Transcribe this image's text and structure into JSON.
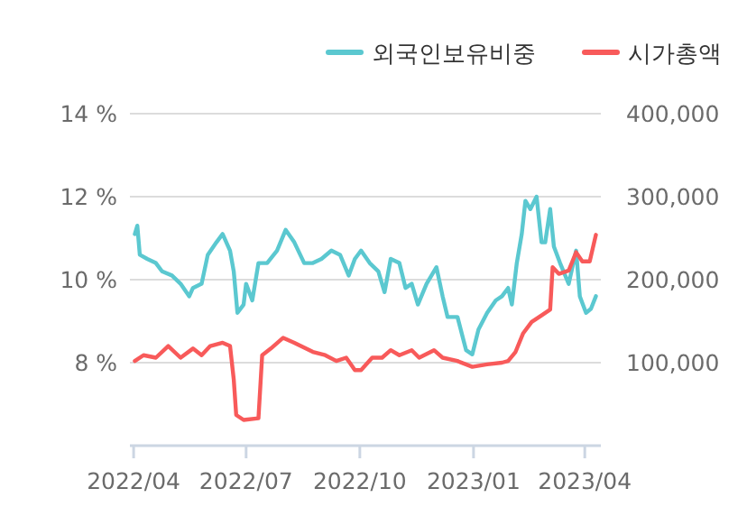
{
  "chart_data": {
    "type": "line",
    "legend": "top right",
    "grid": "y",
    "marker": "none",
    "line_style": "solid",
    "xlim": [
      "2022-03-29",
      "2023-04-14"
    ],
    "xticks": [
      {
        "value": "2022-04-01",
        "label": "2022/04"
      },
      {
        "value": "2022-07-01",
        "label": "2022/07"
      },
      {
        "value": "2022-10-01",
        "label": "2022/10"
      },
      {
        "value": "2023-01-01",
        "label": "2023/01"
      },
      {
        "value": "2023-04-01",
        "label": "2023/04"
      }
    ],
    "ylim": [
      6,
      14
    ],
    "yticks": [
      {
        "value": 8,
        "label": "8 %"
      },
      {
        "value": 10,
        "label": "10 %"
      },
      {
        "value": 12,
        "label": "12 %"
      },
      {
        "value": 14,
        "label": "14 %"
      }
    ],
    "y2lim": [
      0,
      400000
    ],
    "y2ticks": [
      {
        "value": 100000,
        "label": "100,000"
      },
      {
        "value": 200000,
        "label": "200,000"
      },
      {
        "value": 300000,
        "label": "300,000"
      },
      {
        "value": 400000,
        "label": "400,000"
      }
    ],
    "series": [
      {
        "name": "외국인보유비중",
        "color": "#5bc8d0",
        "axis": "y",
        "x": [
          "2022-04-02",
          "2022-04-04",
          "2022-04-06",
          "2022-04-12",
          "2022-04-19",
          "2022-04-24",
          "2022-05-02",
          "2022-05-09",
          "2022-05-16",
          "2022-05-19",
          "2022-05-26",
          "2022-05-31",
          "2022-06-07",
          "2022-06-12",
          "2022-06-18",
          "2022-06-21",
          "2022-06-24",
          "2022-06-29",
          "2022-07-01",
          "2022-07-06",
          "2022-07-11",
          "2022-07-18",
          "2022-07-26",
          "2022-08-02",
          "2022-08-09",
          "2022-08-17",
          "2022-08-24",
          "2022-08-31",
          "2022-09-08",
          "2022-09-15",
          "2022-09-22",
          "2022-09-27",
          "2022-10-02",
          "2022-10-09",
          "2022-10-16",
          "2022-10-21",
          "2022-10-26",
          "2022-11-02",
          "2022-11-07",
          "2022-11-12",
          "2022-11-17",
          "2022-11-24",
          "2022-12-02",
          "2022-12-07",
          "2022-12-11",
          "2022-12-19",
          "2022-12-26",
          "2022-12-31",
          "2023-01-05",
          "2023-01-12",
          "2023-01-19",
          "2023-01-24",
          "2023-01-29",
          "2023-02-01",
          "2023-02-05",
          "2023-02-09",
          "2023-02-12",
          "2023-02-16",
          "2023-02-21",
          "2023-02-25",
          "2023-02-28",
          "2023-03-04",
          "2023-03-07",
          "2023-03-12",
          "2023-03-19",
          "2023-03-25",
          "2023-03-28",
          "2023-04-02",
          "2023-04-06",
          "2023-04-10"
        ],
        "values": [
          11.1,
          11.3,
          10.6,
          10.5,
          10.4,
          10.2,
          10.1,
          9.9,
          9.6,
          9.8,
          9.9,
          10.6,
          10.9,
          11.1,
          10.7,
          10.2,
          9.2,
          9.4,
          9.9,
          9.5,
          10.4,
          10.4,
          10.7,
          11.2,
          10.9,
          10.4,
          10.4,
          10.5,
          10.7,
          10.6,
          10.1,
          10.5,
          10.7,
          10.4,
          10.2,
          9.7,
          10.5,
          10.4,
          9.8,
          9.9,
          9.4,
          9.9,
          10.3,
          9.6,
          9.1,
          9.1,
          8.3,
          8.2,
          8.8,
          9.2,
          9.5,
          9.6,
          9.8,
          9.4,
          10.4,
          11.1,
          11.9,
          11.7,
          12.0,
          10.9,
          10.9,
          11.7,
          10.8,
          10.4,
          9.9,
          10.7,
          9.6,
          9.2,
          9.3,
          9.6
        ]
      },
      {
        "name": "시가총액",
        "color": "#f85a5a",
        "axis": "y2",
        "x": [
          "2022-04-02",
          "2022-04-09",
          "2022-04-19",
          "2022-04-29",
          "2022-05-09",
          "2022-05-19",
          "2022-05-26",
          "2022-06-02",
          "2022-06-12",
          "2022-06-18",
          "2022-06-21",
          "2022-06-23",
          "2022-06-29",
          "2022-07-11",
          "2022-07-14",
          "2022-07-21",
          "2022-07-31",
          "2022-08-09",
          "2022-08-24",
          "2022-09-03",
          "2022-09-12",
          "2022-09-20",
          "2022-09-27",
          "2022-10-02",
          "2022-10-11",
          "2022-10-19",
          "2022-10-26",
          "2022-11-02",
          "2022-11-12",
          "2022-11-18",
          "2022-11-30",
          "2022-12-07",
          "2022-12-19",
          "2022-12-31",
          "2023-01-12",
          "2023-01-24",
          "2023-01-29",
          "2023-02-04",
          "2023-02-10",
          "2023-02-17",
          "2023-02-25",
          "2023-03-04",
          "2023-03-06",
          "2023-03-11",
          "2023-03-19",
          "2023-03-25",
          "2023-03-30",
          "2023-04-05",
          "2023-04-10"
        ],
        "values": [
          102000,
          109000,
          106000,
          120000,
          106000,
          117000,
          109000,
          120000,
          124000,
          120000,
          80000,
          37000,
          31000,
          33000,
          109000,
          117000,
          130000,
          124000,
          113000,
          109000,
          102000,
          106000,
          91000,
          91000,
          106000,
          106000,
          115000,
          109000,
          115000,
          106000,
          115000,
          106000,
          102000,
          95000,
          98000,
          100000,
          102000,
          113000,
          135000,
          149000,
          157000,
          164000,
          215000,
          207000,
          211000,
          233000,
          222000,
          222000,
          254000
        ]
      }
    ]
  }
}
